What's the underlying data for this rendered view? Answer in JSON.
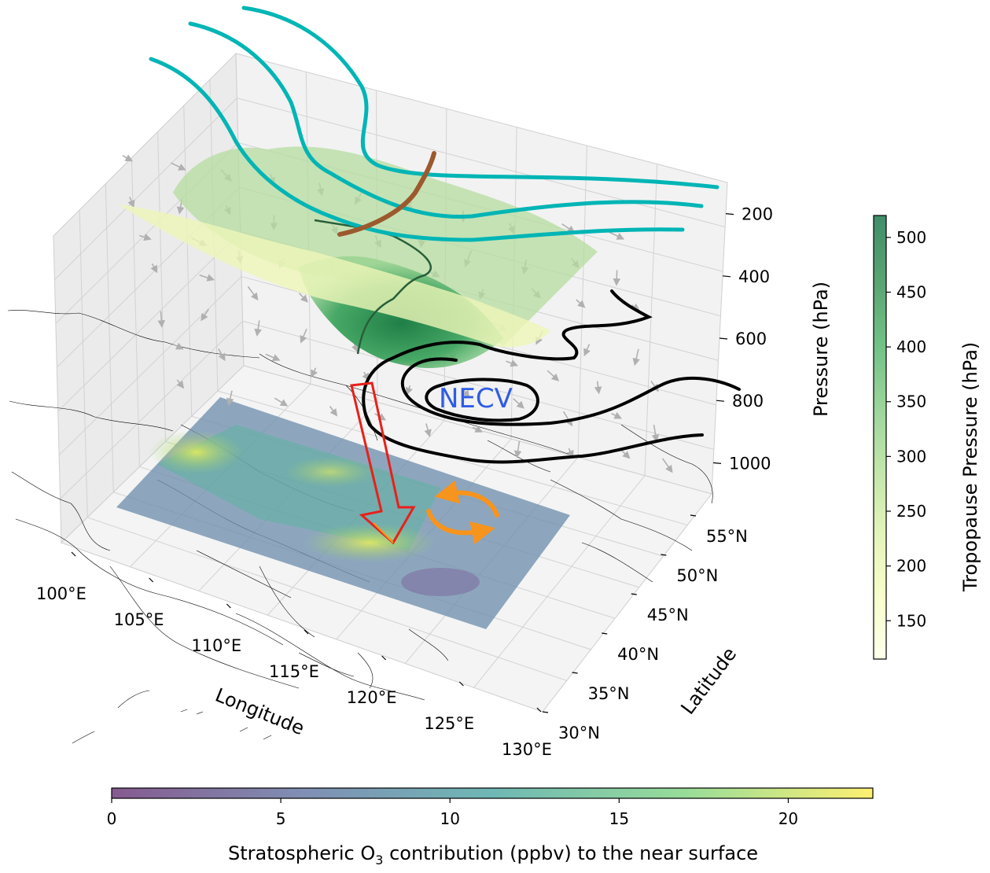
{
  "chart_data": {
    "type": "3d-surface-contour",
    "annotation": "NECV",
    "x_axis": {
      "label": "Longitude",
      "ticks": [
        "100°E",
        "105°E",
        "110°E",
        "115°E",
        "120°E",
        "125°E",
        "130°E"
      ],
      "range": [
        100,
        130
      ]
    },
    "y_axis": {
      "label": "Latitude",
      "ticks": [
        "30°N",
        "35°N",
        "40°N",
        "45°N",
        "50°N",
        "55°N"
      ],
      "range": [
        30,
        57
      ]
    },
    "z_axis": {
      "label": "Pressure (hPa)",
      "ticks": [
        "200",
        "400",
        "600",
        "800",
        "1000"
      ],
      "range": [
        100,
        1100
      ],
      "inverted": true
    },
    "surface_colorbar": {
      "label": "Tropopause Pressure (hPa)",
      "ticks": [
        "150",
        "200",
        "250",
        "300",
        "350",
        "400",
        "450",
        "500"
      ],
      "range": [
        115,
        520
      ],
      "colormap": [
        "#ffffe5",
        "#f7fcb9",
        "#d9f0a3",
        "#addd8e",
        "#78c679",
        "#41ab5d",
        "#238443",
        "#006837"
      ]
    },
    "ground_colorbar": {
      "label_before": "Stratospheric O",
      "label_sub": "3",
      "label_after": " contribution (ppbv) to the near surface",
      "ticks": [
        "0",
        "5",
        "10",
        "15",
        "20"
      ],
      "range": [
        0,
        22.5
      ],
      "colormap": [
        "#440154",
        "#3b528b",
        "#21918c",
        "#5ec962",
        "#fde725"
      ]
    },
    "colors": {
      "jet_lines": "#00b5b5",
      "trough_axis": "#9b5a2e",
      "geopotential_contours": "#000000",
      "descent_arrow": "#e8201a",
      "circulation_arrows": "#f7941d",
      "necv_label": "#2f5ce6"
    },
    "grid": true
  }
}
